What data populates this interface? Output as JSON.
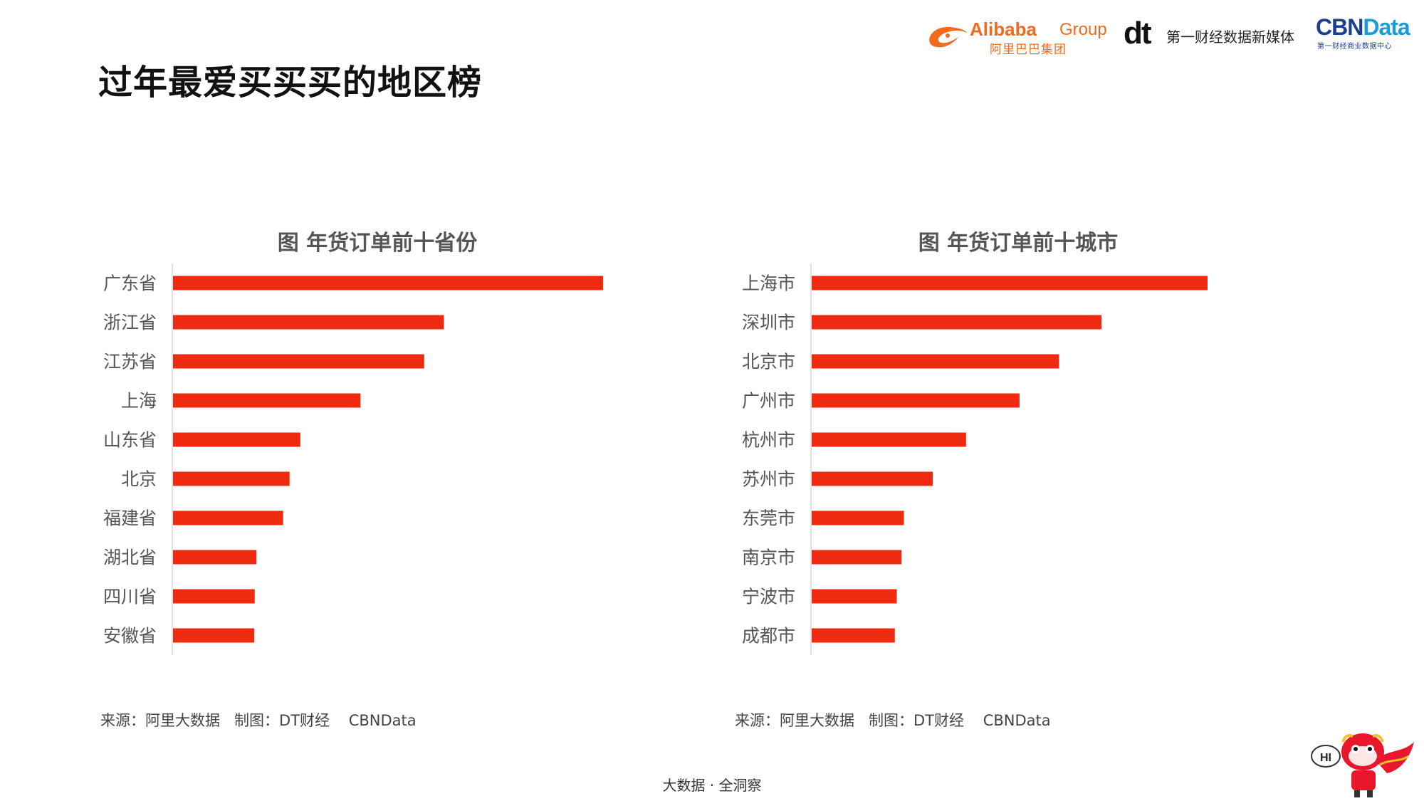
{
  "page": {
    "title": "过年最爱买买买的地区榜",
    "footer": "大数据 · 全洞察"
  },
  "logos": {
    "alibaba_name": "Alibaba",
    "alibaba_group": "Group",
    "alibaba_cn": "阿里巴巴集团",
    "dt_mark": "dt",
    "dt_text": "第一财经数据新媒体",
    "cbn_mark_a": "CBN",
    "cbn_mark_b": "Data",
    "cbn_sub": "第一财经商业数据中心"
  },
  "mascot": {
    "bubble_text": "HI"
  },
  "colors": {
    "bar": "#ee2a10",
    "axis": "#d9d9d9",
    "label": "#555555"
  },
  "chart_data": [
    {
      "type": "bar",
      "orientation": "horizontal",
      "title": "图 年货订单前十省份",
      "categories": [
        "广东省",
        "浙江省",
        "江苏省",
        "上海",
        "山东省",
        "北京",
        "福建省",
        "湖北省",
        "四川省",
        "安徽省"
      ],
      "values": [
        100,
        63,
        58.4,
        43.6,
        29.6,
        27.1,
        25.6,
        19.4,
        19,
        18.9
      ],
      "xlim": [
        0,
        100
      ],
      "xlabel": "",
      "ylabel": "",
      "grid": false,
      "legend": "none",
      "source": "来源：阿里大数据   制图：DT财经    CBNData"
    },
    {
      "type": "bar",
      "orientation": "horizontal",
      "title": "图 年货订单前十城市",
      "categories": [
        "上海市",
        "深圳市",
        "北京市",
        "广州市",
        "杭州市",
        "苏州市",
        "东莞市",
        "南京市",
        "宁波市",
        "成都市"
      ],
      "values": [
        100,
        73.2,
        62.5,
        52.5,
        39,
        30.6,
        23.3,
        22.7,
        21.5,
        21
      ],
      "xlim": [
        0,
        100
      ],
      "xlabel": "",
      "ylabel": "",
      "grid": false,
      "legend": "none",
      "source": "来源：阿里大数据   制图：DT财经    CBNData"
    }
  ]
}
